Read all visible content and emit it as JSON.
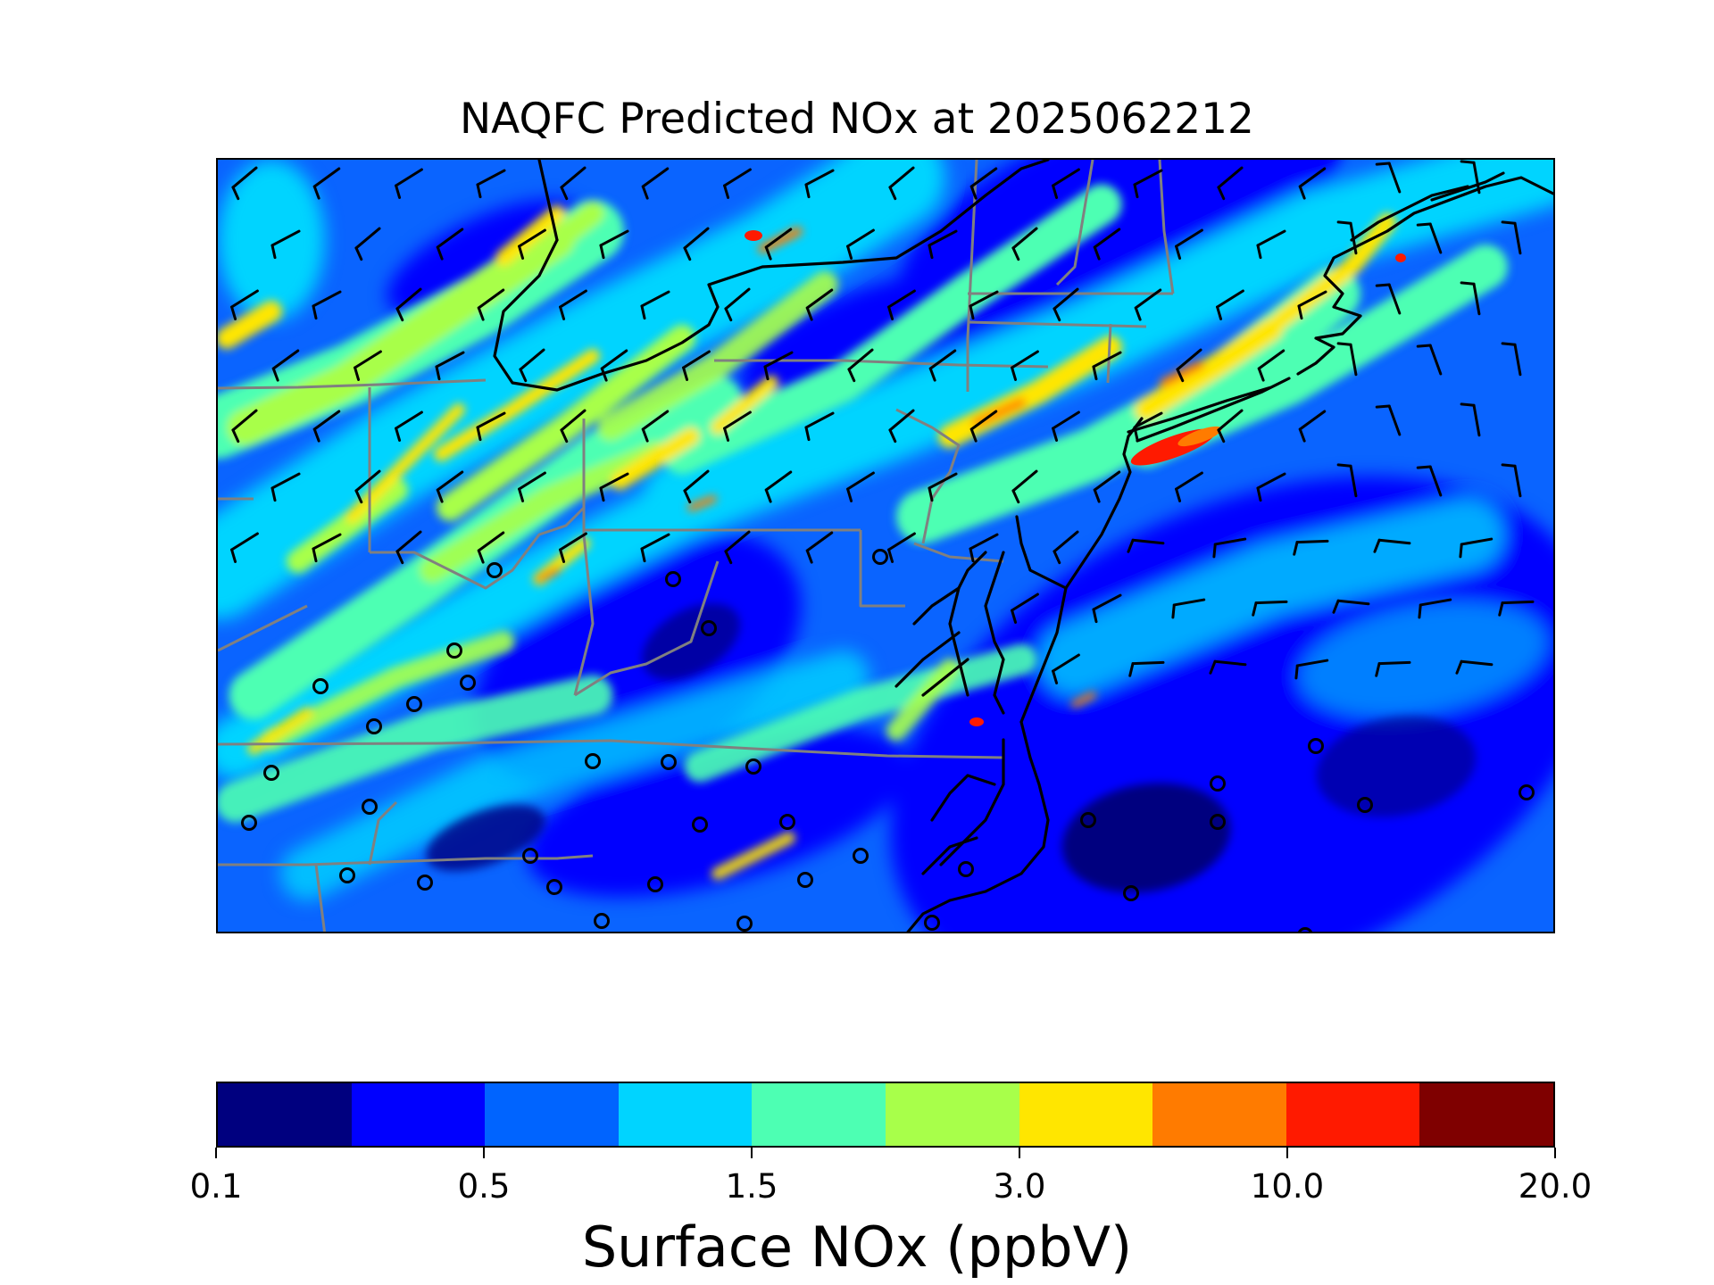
{
  "map": {
    "title": "NAQFC Predicted NOx at 2025062212",
    "legend": {
      "label": "Surface NOx (ppbV)",
      "colors": [
        "#00007f",
        "#0000ff",
        "#0064ff",
        "#00d4ff",
        "#4dffb3",
        "#a8ff4a",
        "#ffe600",
        "#ff7b00",
        "#ff1a00",
        "#7f0000"
      ],
      "tick_labels": [
        "0.1",
        "0.5",
        "1.5",
        "3.0",
        "10.0",
        "20.0"
      ]
    },
    "boundary_colors": {
      "coastline": "#000000",
      "state_lines": "#808080"
    },
    "feature_icons": {
      "wind_symbol": "wind-barb-icon",
      "calm_wind_symbol": "calm-wind-circle-icon"
    }
  }
}
